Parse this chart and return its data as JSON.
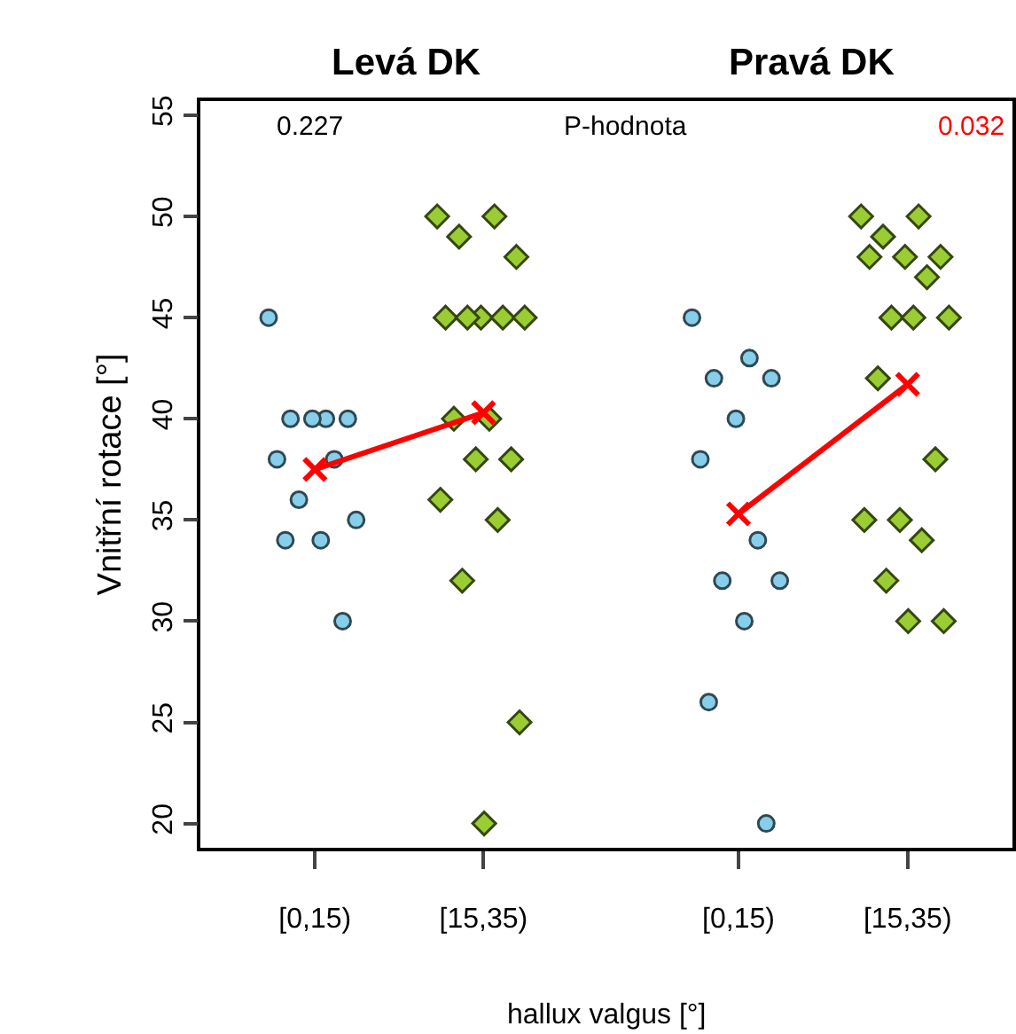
{
  "chart_data": [
    {
      "type": "scatter",
      "title": "Levá DK",
      "xlabel": "hallux valgus [°]",
      "ylabel": "Vnitřní rotace [°]",
      "annotations": [
        "0.227",
        "P-hodnota"
      ],
      "categories": [
        "[0,15)",
        "[15,35)"
      ],
      "ylim": [
        18.8,
        55.7
      ],
      "yticks": [
        20,
        25,
        30,
        35,
        40,
        45,
        50,
        55
      ],
      "series": [
        {
          "marker": "circle",
          "color": "#87ceeb",
          "x": [
            "[0,15)",
            "[0,15)",
            "[0,15)",
            "[0,15)",
            "[0,15)",
            "[0,15)",
            "[0,15)",
            "[0,15)",
            "[0,15)",
            "[0,15)",
            "[0,15)",
            "[0,15)"
          ],
          "values": [
            45,
            40,
            40,
            40,
            40,
            38,
            38,
            36,
            35,
            34,
            34,
            30
          ]
        },
        {
          "marker": "diamond",
          "color": "#9acd32",
          "x": [
            "[15,35)",
            "[15,35)",
            "[15,35)",
            "[15,35)",
            "[15,35)",
            "[15,35)",
            "[15,35)",
            "[15,35)",
            "[15,35)",
            "[15,35)",
            "[15,35)",
            "[15,35)",
            "[15,35)",
            "[15,35)",
            "[15,35)",
            "[15,35)",
            "[15,35)",
            "[15,35)"
          ],
          "values": [
            50,
            50,
            49,
            48,
            45,
            45,
            45,
            45,
            45,
            40,
            40,
            38,
            38,
            36,
            35,
            32,
            25,
            20
          ]
        },
        {
          "type": "line",
          "marker": "cross",
          "color": "#ff0000",
          "values": [
            37.5,
            40.3
          ]
        }
      ]
    },
    {
      "type": "scatter",
      "title": "Pravá DK",
      "annotations": [
        "0.032"
      ],
      "categories": [
        "[0,15)",
        "[15,35)"
      ],
      "ylim": [
        18.8,
        55.7
      ],
      "yticks": [
        20,
        25,
        30,
        35,
        40,
        45,
        50,
        55
      ],
      "tick_labels": "x",
      "series": [
        {
          "marker": "circle",
          "color": "#87ceeb",
          "x": [
            "[0,15)",
            "[0,15)",
            "[0,15)",
            "[0,15)",
            "[0,15)",
            "[0,15)",
            "[0,15)",
            "[0,15)",
            "[0,15)",
            "[0,15)",
            "[0,15)",
            "[0,15)"
          ],
          "values": [
            45,
            43,
            42,
            42,
            40,
            38,
            34,
            32,
            32,
            30,
            26,
            20
          ]
        },
        {
          "marker": "diamond",
          "color": "#9acd32",
          "x": [
            "[15,35)",
            "[15,35)",
            "[15,35)",
            "[15,35)",
            "[15,35)",
            "[15,35)",
            "[15,35)",
            "[15,35)",
            "[15,35)",
            "[15,35)",
            "[15,35)",
            "[15,35)",
            "[15,35)",
            "[15,35)",
            "[15,35)",
            "[15,35)",
            "[15,35)",
            "[15,35)"
          ],
          "values": [
            50,
            50,
            49,
            48,
            48,
            48,
            47,
            45,
            45,
            45,
            42,
            38,
            35,
            35,
            34,
            32,
            30,
            30
          ]
        },
        {
          "type": "line",
          "marker": "cross",
          "color": "#ff0000",
          "values": [
            35.3,
            41.7
          ]
        }
      ]
    }
  ]
}
